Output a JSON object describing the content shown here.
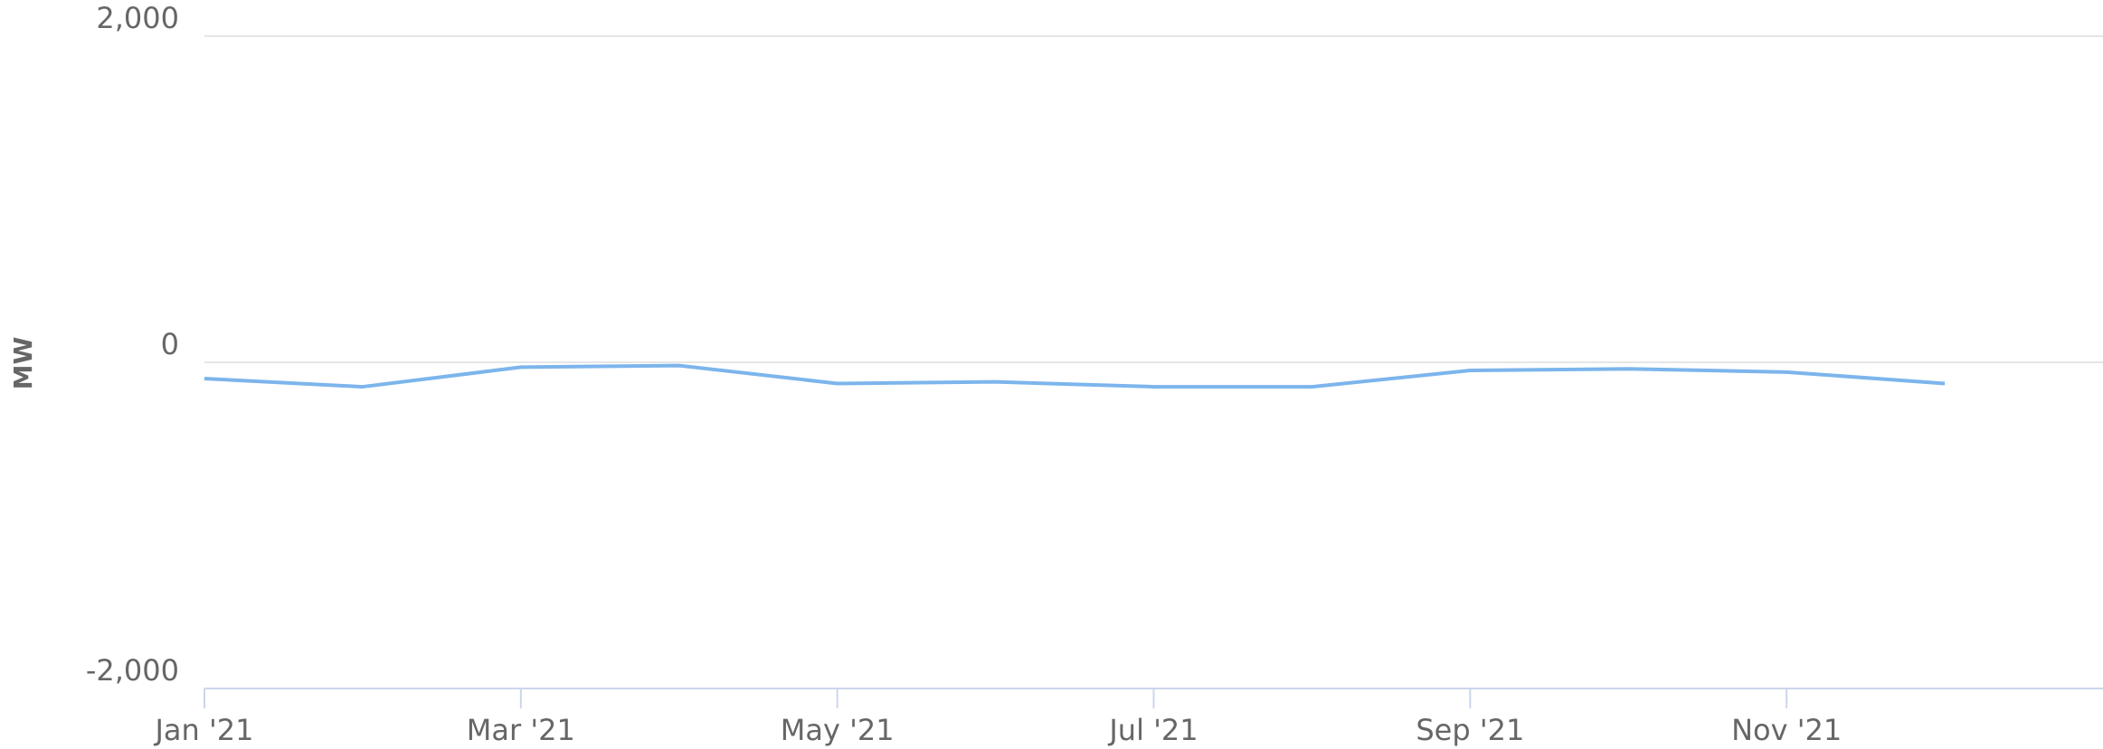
{
  "chart_data": {
    "type": "line",
    "y_label": "MW",
    "x": [
      "2021-01",
      "2021-02",
      "2021-03",
      "2021-04",
      "2021-05",
      "2021-06",
      "2021-07",
      "2021-08",
      "2021-09",
      "2021-10",
      "2021-11",
      "2021-12"
    ],
    "series": [
      {
        "name": "MW",
        "color": "#7cb5ec",
        "values": [
          -100,
          -150,
          -30,
          -20,
          -130,
          -120,
          -150,
          -150,
          -50,
          -40,
          -60,
          -130
        ]
      }
    ],
    "xlim": [
      "2021-01",
      "2022-01"
    ],
    "xticks": [
      {
        "value": "2021-01",
        "label": "Jan '21"
      },
      {
        "value": "2021-03",
        "label": "Mar '21"
      },
      {
        "value": "2021-05",
        "label": "May '21"
      },
      {
        "value": "2021-07",
        "label": "Jul '21"
      },
      {
        "value": "2021-09",
        "label": "Sep '21"
      },
      {
        "value": "2021-11",
        "label": "Nov '21"
      }
    ],
    "ylim": [
      -2000,
      2000
    ],
    "yticks": [
      {
        "value": -2000,
        "label": "-2,000"
      },
      0,
      {
        "value": 2000,
        "label": "2,000"
      }
    ],
    "grid": true
  }
}
